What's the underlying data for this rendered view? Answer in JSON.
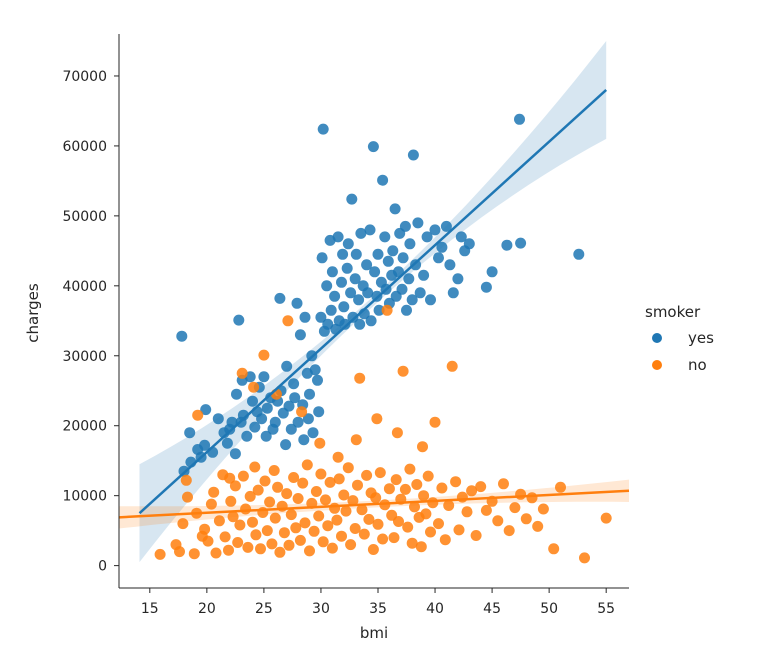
{
  "chart_data": {
    "type": "scatter",
    "title": "",
    "xlabel": "bmi",
    "ylabel": "charges",
    "xlim": [
      12.3,
      57.0
    ],
    "ylim": [
      -3200,
      76000
    ],
    "xticks": [
      15,
      20,
      25,
      30,
      35,
      40,
      45,
      50,
      55
    ],
    "yticks": [
      0,
      10000,
      20000,
      30000,
      40000,
      50000,
      60000,
      70000
    ],
    "grid": false,
    "legend": {
      "title": "smoker",
      "placement": "right-outside"
    },
    "series": [
      {
        "name": "yes",
        "color": "#1f77b4",
        "regression": {
          "x": [
            14.1,
            55.0
          ],
          "y": [
            7500,
            68000
          ]
        },
        "points": [
          [
            17.8,
            32800
          ],
          [
            18.5,
            19000
          ],
          [
            19.2,
            16600
          ],
          [
            19.8,
            17200
          ],
          [
            19.9,
            22300
          ],
          [
            20.5,
            16200
          ],
          [
            21.0,
            21000
          ],
          [
            21.5,
            19000
          ],
          [
            22.0,
            19500
          ],
          [
            22.2,
            20500
          ],
          [
            22.6,
            24500
          ],
          [
            22.8,
            35100
          ],
          [
            23.1,
            26500
          ],
          [
            23.2,
            21500
          ],
          [
            23.5,
            18500
          ],
          [
            23.8,
            27000
          ],
          [
            24.0,
            23500
          ],
          [
            24.2,
            19800
          ],
          [
            24.4,
            22000
          ],
          [
            24.6,
            25500
          ],
          [
            24.8,
            21000
          ],
          [
            25.0,
            27000
          ],
          [
            25.2,
            18500
          ],
          [
            25.3,
            22500
          ],
          [
            25.6,
            24000
          ],
          [
            25.8,
            19500
          ],
          [
            26.0,
            20500
          ],
          [
            26.2,
            23500
          ],
          [
            26.4,
            38200
          ],
          [
            26.5,
            25000
          ],
          [
            26.7,
            21800
          ],
          [
            26.9,
            17300
          ],
          [
            27.0,
            28500
          ],
          [
            27.2,
            22800
          ],
          [
            27.4,
            19500
          ],
          [
            27.6,
            26000
          ],
          [
            27.7,
            24000
          ],
          [
            27.9,
            37500
          ],
          [
            28.0,
            20500
          ],
          [
            28.2,
            33000
          ],
          [
            28.4,
            23000
          ],
          [
            28.5,
            18000
          ],
          [
            28.6,
            35500
          ],
          [
            28.8,
            27500
          ],
          [
            28.9,
            21000
          ],
          [
            29.0,
            24500
          ],
          [
            29.2,
            30000
          ],
          [
            29.3,
            19000
          ],
          [
            29.5,
            28000
          ],
          [
            29.7,
            26500
          ],
          [
            29.8,
            22000
          ],
          [
            30.0,
            35500
          ],
          [
            30.1,
            44000
          ],
          [
            30.2,
            62400
          ],
          [
            30.3,
            33500
          ],
          [
            30.5,
            40000
          ],
          [
            30.6,
            34500
          ],
          [
            30.8,
            46500
          ],
          [
            30.9,
            36500
          ],
          [
            31.0,
            42000
          ],
          [
            31.2,
            38500
          ],
          [
            31.3,
            33800
          ],
          [
            31.5,
            47000
          ],
          [
            31.6,
            35000
          ],
          [
            31.8,
            40500
          ],
          [
            31.9,
            44500
          ],
          [
            32.0,
            37000
          ],
          [
            32.1,
            34500
          ],
          [
            32.3,
            42500
          ],
          [
            32.4,
            46000
          ],
          [
            32.6,
            39000
          ],
          [
            32.7,
            52400
          ],
          [
            32.8,
            35500
          ],
          [
            33.0,
            41000
          ],
          [
            33.1,
            44500
          ],
          [
            33.3,
            38000
          ],
          [
            33.4,
            34500
          ],
          [
            33.5,
            47500
          ],
          [
            33.7,
            40000
          ],
          [
            33.8,
            36000
          ],
          [
            34.0,
            43000
          ],
          [
            34.1,
            39000
          ],
          [
            34.3,
            48000
          ],
          [
            34.4,
            35000
          ],
          [
            34.6,
            59900
          ],
          [
            34.7,
            42000
          ],
          [
            34.9,
            38500
          ],
          [
            35.0,
            44500
          ],
          [
            35.1,
            36500
          ],
          [
            35.3,
            40500
          ],
          [
            35.4,
            55100
          ],
          [
            35.6,
            47000
          ],
          [
            35.7,
            39500
          ],
          [
            35.9,
            43500
          ],
          [
            36.0,
            37500
          ],
          [
            36.2,
            41500
          ],
          [
            36.3,
            45000
          ],
          [
            36.5,
            51000
          ],
          [
            36.6,
            38500
          ],
          [
            36.8,
            42000
          ],
          [
            36.9,
            47500
          ],
          [
            37.1,
            39500
          ],
          [
            37.2,
            44000
          ],
          [
            37.4,
            48500
          ],
          [
            37.5,
            36500
          ],
          [
            37.7,
            41000
          ],
          [
            37.8,
            46000
          ],
          [
            38.0,
            38000
          ],
          [
            38.1,
            58700
          ],
          [
            38.3,
            43000
          ],
          [
            38.5,
            49000
          ],
          [
            38.7,
            39000
          ],
          [
            39.0,
            41500
          ],
          [
            39.3,
            47000
          ],
          [
            39.6,
            38000
          ],
          [
            40.0,
            48000
          ],
          [
            40.3,
            44000
          ],
          [
            40.6,
            45500
          ],
          [
            41.0,
            48500
          ],
          [
            41.3,
            43000
          ],
          [
            41.6,
            39000
          ],
          [
            42.0,
            41000
          ],
          [
            42.3,
            47000
          ],
          [
            42.6,
            45000
          ],
          [
            43.0,
            46000
          ],
          [
            44.5,
            39800
          ],
          [
            45.0,
            42000
          ],
          [
            46.3,
            45800
          ],
          [
            47.4,
            63800
          ],
          [
            47.5,
            46100
          ],
          [
            52.6,
            44500
          ],
          [
            18.0,
            13500
          ],
          [
            18.6,
            14800
          ],
          [
            19.5,
            15500
          ],
          [
            21.8,
            17500
          ],
          [
            22.5,
            16000
          ],
          [
            23.0,
            20500
          ]
        ]
      },
      {
        "name": "no",
        "color": "#ff7f0e",
        "regression": {
          "x": [
            12.3,
            57.0
          ],
          "y": [
            6900,
            10700
          ]
        },
        "points": [
          [
            15.9,
            1600
          ],
          [
            17.3,
            3000
          ],
          [
            17.6,
            2000
          ],
          [
            18.2,
            12200
          ],
          [
            18.3,
            9800
          ],
          [
            18.9,
            1700
          ],
          [
            19.1,
            7500
          ],
          [
            19.2,
            21500
          ],
          [
            19.8,
            5200
          ],
          [
            20.1,
            3500
          ],
          [
            20.4,
            8800
          ],
          [
            20.6,
            10500
          ],
          [
            20.8,
            1800
          ],
          [
            21.1,
            6400
          ],
          [
            21.4,
            13000
          ],
          [
            21.6,
            4100
          ],
          [
            21.9,
            2200
          ],
          [
            22.1,
            9200
          ],
          [
            22.3,
            7000
          ],
          [
            22.5,
            11400
          ],
          [
            22.7,
            3300
          ],
          [
            22.9,
            5800
          ],
          [
            23.1,
            27500
          ],
          [
            23.2,
            12800
          ],
          [
            23.4,
            8100
          ],
          [
            23.6,
            2600
          ],
          [
            23.8,
            9900
          ],
          [
            24.0,
            6200
          ],
          [
            24.2,
            14100
          ],
          [
            24.3,
            4400
          ],
          [
            24.5,
            10800
          ],
          [
            24.7,
            2400
          ],
          [
            24.9,
            7600
          ],
          [
            25.0,
            30100
          ],
          [
            25.1,
            12100
          ],
          [
            25.3,
            5000
          ],
          [
            25.5,
            9100
          ],
          [
            25.7,
            3100
          ],
          [
            25.9,
            13600
          ],
          [
            26.0,
            6800
          ],
          [
            26.2,
            11200
          ],
          [
            26.4,
            1900
          ],
          [
            26.6,
            8500
          ],
          [
            26.8,
            4700
          ],
          [
            27.0,
            10300
          ],
          [
            27.1,
            35000
          ],
          [
            27.2,
            2900
          ],
          [
            27.4,
            7300
          ],
          [
            27.6,
            12600
          ],
          [
            27.8,
            5400
          ],
          [
            28.0,
            9600
          ],
          [
            28.2,
            3600
          ],
          [
            28.4,
            11800
          ],
          [
            28.6,
            6100
          ],
          [
            28.8,
            14400
          ],
          [
            29.0,
            2100
          ],
          [
            29.2,
            8900
          ],
          [
            29.4,
            4900
          ],
          [
            29.6,
            10600
          ],
          [
            29.8,
            7100
          ],
          [
            30.0,
            13100
          ],
          [
            30.2,
            3400
          ],
          [
            30.4,
            9400
          ],
          [
            30.6,
            5700
          ],
          [
            30.8,
            11900
          ],
          [
            31.0,
            2500
          ],
          [
            31.2,
            8200
          ],
          [
            31.4,
            6500
          ],
          [
            31.6,
            12400
          ],
          [
            31.8,
            4200
          ],
          [
            32.0,
            10100
          ],
          [
            32.2,
            7800
          ],
          [
            32.4,
            14000
          ],
          [
            32.6,
            3000
          ],
          [
            32.8,
            9300
          ],
          [
            33.0,
            5300
          ],
          [
            33.2,
            11500
          ],
          [
            33.4,
            26800
          ],
          [
            33.6,
            8000
          ],
          [
            33.8,
            4500
          ],
          [
            34.0,
            12900
          ],
          [
            34.2,
            6600
          ],
          [
            34.4,
            10400
          ],
          [
            34.6,
            2300
          ],
          [
            34.8,
            9700
          ],
          [
            35.0,
            5900
          ],
          [
            35.2,
            13300
          ],
          [
            35.4,
            3800
          ],
          [
            35.6,
            8700
          ],
          [
            35.8,
            36500
          ],
          [
            36.0,
            11000
          ],
          [
            36.2,
            7200
          ],
          [
            36.4,
            4000
          ],
          [
            36.6,
            12300
          ],
          [
            36.8,
            6300
          ],
          [
            37.0,
            9500
          ],
          [
            37.2,
            27800
          ],
          [
            37.4,
            10900
          ],
          [
            37.6,
            5500
          ],
          [
            37.8,
            13800
          ],
          [
            38.0,
            3200
          ],
          [
            38.2,
            8400
          ],
          [
            38.4,
            11600
          ],
          [
            38.6,
            6900
          ],
          [
            38.8,
            2700
          ],
          [
            39.0,
            10000
          ],
          [
            39.2,
            7400
          ],
          [
            39.4,
            12800
          ],
          [
            39.6,
            4800
          ],
          [
            39.8,
            9000
          ],
          [
            40.0,
            20500
          ],
          [
            40.3,
            6000
          ],
          [
            40.6,
            11100
          ],
          [
            40.9,
            3700
          ],
          [
            41.2,
            8600
          ],
          [
            41.5,
            28500
          ],
          [
            41.8,
            12000
          ],
          [
            42.1,
            5100
          ],
          [
            42.4,
            9800
          ],
          [
            42.8,
            7700
          ],
          [
            43.2,
            10700
          ],
          [
            43.6,
            4300
          ],
          [
            44.0,
            11300
          ],
          [
            44.5,
            7900
          ],
          [
            45.0,
            9200
          ],
          [
            45.5,
            6400
          ],
          [
            46.0,
            11700
          ],
          [
            46.5,
            5000
          ],
          [
            47.0,
            8300
          ],
          [
            47.5,
            10200
          ],
          [
            48.0,
            6700
          ],
          [
            48.5,
            9700
          ],
          [
            49.0,
            5600
          ],
          [
            49.5,
            8100
          ],
          [
            50.4,
            2400
          ],
          [
            51.0,
            11200
          ],
          [
            53.1,
            1100
          ],
          [
            55.0,
            6800
          ],
          [
            17.9,
            6000
          ],
          [
            19.6,
            4200
          ],
          [
            22.0,
            12500
          ],
          [
            24.1,
            25500
          ],
          [
            26.1,
            24500
          ],
          [
            28.3,
            22000
          ],
          [
            29.9,
            17500
          ],
          [
            31.5,
            15500
          ],
          [
            33.1,
            18000
          ],
          [
            34.9,
            21000
          ],
          [
            36.7,
            19000
          ],
          [
            38.9,
            17000
          ]
        ]
      }
    ]
  }
}
